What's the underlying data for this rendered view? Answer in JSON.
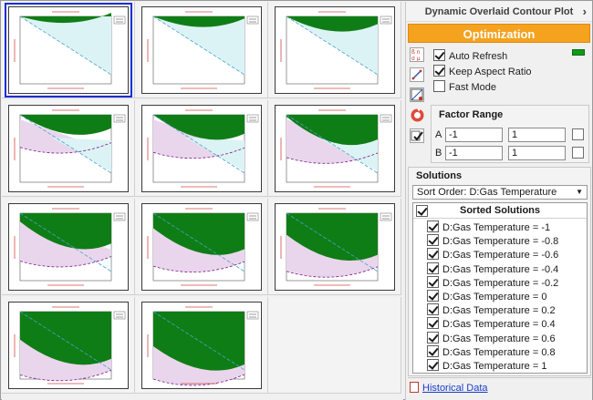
{
  "panel": {
    "title": "Dynamic Overlaid Contour Plot",
    "chevron_icon": "chevron-right-icon",
    "optimization_label": "Optimization",
    "options": [
      {
        "label": "Auto Refresh",
        "checked": true
      },
      {
        "label": "Keep Aspect Ratio",
        "checked": true
      },
      {
        "label": "Fast Mode",
        "checked": false
      }
    ],
    "indicator_color": "#0f9a1a",
    "factor_range": {
      "title": "Factor Range",
      "rows": [
        {
          "name": "A",
          "min": "-1",
          "max": "1",
          "checked": false
        },
        {
          "name": "B",
          "min": "-1",
          "max": "1",
          "checked": false
        }
      ]
    },
    "solutions": {
      "title": "Solutions",
      "sort_order": "Sort Order: D:Gas Temperature",
      "header": "Sorted Solutions",
      "items": [
        "D:Gas Temperature = -1",
        "D:Gas Temperature = -0.8",
        "D:Gas Temperature = -0.6",
        "D:Gas Temperature = -0.4",
        "D:Gas Temperature = -0.2",
        "D:Gas Temperature = 0",
        "D:Gas Temperature = 0.2",
        "D:Gas Temperature = 0.4",
        "D:Gas Temperature = 0.6",
        "D:Gas Temperature = 0.8",
        "D:Gas Temperature = 1"
      ]
    },
    "historical_link": "Historical Data"
  },
  "colors": {
    "accent": "#f5a21f",
    "feasible_green": "#0f7d16",
    "cyan_region": "#dcf3f5",
    "pink_region": "#ead6ec",
    "selection": "#1a2fd6"
  },
  "thumbnails": [
    {
      "selected": true
    },
    {},
    {},
    {},
    {},
    {},
    {},
    {},
    {},
    {},
    {}
  ]
}
